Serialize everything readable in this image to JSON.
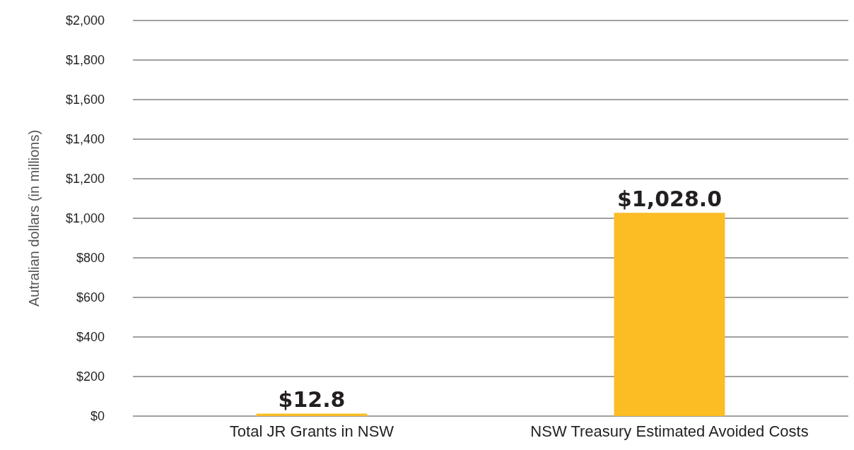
{
  "chart_data": {
    "type": "bar",
    "ylabel": "Autralian dollars (in millions)",
    "categories": [
      "Total JR Grants in NSW",
      "NSW Treasury Estimated Avoided Costs"
    ],
    "values": [
      12.8,
      1028.0
    ],
    "value_labels": [
      "$12.8",
      "$1,028.0"
    ],
    "color": "#fbbc24",
    "ylim": [
      0,
      2000
    ],
    "yticks": [
      {
        "value": 0,
        "label": "$0"
      },
      {
        "value": 200,
        "label": "$200"
      },
      {
        "value": 400,
        "label": "$400"
      },
      {
        "value": 600,
        "label": "$600"
      },
      {
        "value": 800,
        "label": "$800"
      },
      {
        "value": 1000,
        "label": "$1,000"
      },
      {
        "value": 1200,
        "label": "$1,200"
      },
      {
        "value": 1400,
        "label": "$1,400"
      },
      {
        "value": 1600,
        "label": "$1,600"
      },
      {
        "value": 1800,
        "label": "$1,800"
      },
      {
        "value": 2000,
        "label": "$2,000"
      }
    ],
    "grid": "y"
  }
}
